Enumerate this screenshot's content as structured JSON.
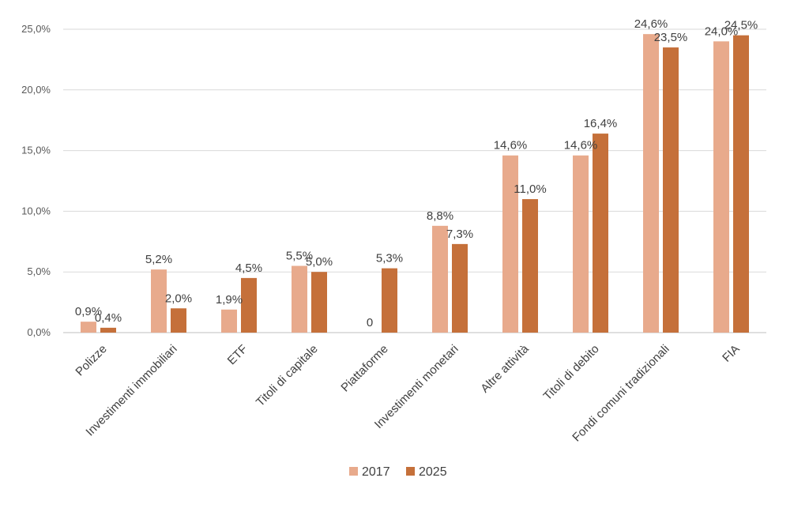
{
  "chart_data": {
    "type": "bar",
    "title": "",
    "xlabel": "",
    "ylabel": "",
    "ylim": [
      0,
      25
    ],
    "yticks": [
      "0,0%",
      "5,0%",
      "10,0%",
      "15,0%",
      "20,0%",
      "25,0%"
    ],
    "grid": true,
    "legend_position": "bottom",
    "categories": [
      "Polizze",
      "Investimenti immobiliari",
      "ETF",
      "Titoli di capitale",
      "Piattaforme",
      "Investimenti monetari",
      "Altre attività",
      "Titoli di debito",
      "Fondi comuni tradizionali",
      "FIA"
    ],
    "series": [
      {
        "name": "2017",
        "color": "#E8AA8C",
        "values": [
          0.9,
          5.2,
          1.9,
          5.5,
          0,
          8.8,
          14.6,
          14.6,
          24.6,
          24.0
        ],
        "labels": [
          "0,9%",
          "5,2%",
          "1,9%",
          "5,5%",
          "0",
          "8,8%",
          "14,6%",
          "14,6%",
          "24,6%",
          "24,0%"
        ]
      },
      {
        "name": "2025",
        "color": "#C5703A",
        "values": [
          0.4,
          2.0,
          4.5,
          5.0,
          5.3,
          7.3,
          11.0,
          16.4,
          23.5,
          24.5
        ],
        "labels": [
          "0,4%",
          "2,0%",
          "4,5%",
          "5,0%",
          "5,3%",
          "7,3%",
          "11,0%",
          "16,4%",
          "23,5%",
          "24,5%"
        ]
      }
    ]
  }
}
